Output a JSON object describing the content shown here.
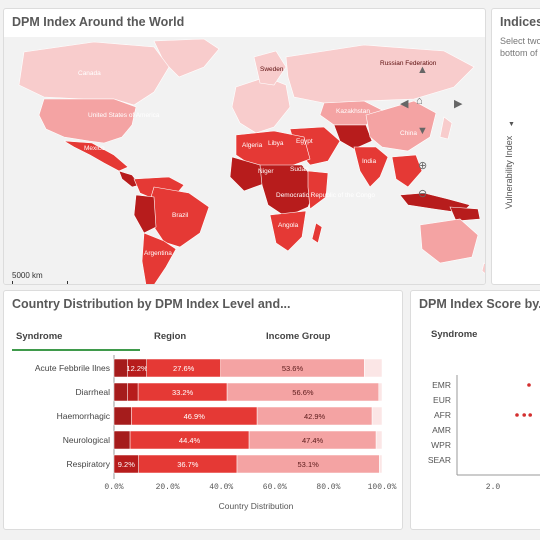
{
  "map_panel": {
    "title": "DPM Index Around the World",
    "scale_label": "5000 km",
    "country_labels": [
      {
        "id": "canada",
        "text": "Canada"
      },
      {
        "id": "usa",
        "text": "United States of America"
      },
      {
        "id": "mexico",
        "text": "Mexico"
      },
      {
        "id": "brazil",
        "text": "Brazil"
      },
      {
        "id": "argentina",
        "text": "Argentina"
      },
      {
        "id": "russia",
        "text": "Russian Federation"
      },
      {
        "id": "sweden",
        "text": "Sweden"
      },
      {
        "id": "kazakhstan",
        "text": "Kazakhstan"
      },
      {
        "id": "china",
        "text": "China"
      },
      {
        "id": "libya",
        "text": "Libya"
      },
      {
        "id": "algeria",
        "text": "Algeria"
      },
      {
        "id": "egypt",
        "text": "Egypt"
      },
      {
        "id": "niger",
        "text": "Niger"
      },
      {
        "id": "sudan",
        "text": "Sudan"
      },
      {
        "id": "india",
        "text": "India"
      },
      {
        "id": "drc",
        "text": "Democratic Republic of the Congo"
      },
      {
        "id": "angola",
        "text": "Angola"
      }
    ],
    "colors": {
      "dark": "#b71c1c",
      "mid": "#e53935",
      "light": "#f4a3a3",
      "pale": "#f8cccc",
      "water": "#f2f2f2"
    }
  },
  "indices_panel": {
    "title": "Indices",
    "subtitle_line1": "Select two",
    "subtitle_line2": "bottom of",
    "axis_label": "Vulnerability Index"
  },
  "dist_panel": {
    "title": "Country Distribution by DPM Index Level and...",
    "tabs": [
      {
        "label": "Syndrome",
        "active": true
      },
      {
        "label": "Region",
        "active": false
      },
      {
        "label": "Income Group",
        "active": false
      }
    ]
  },
  "score_panel": {
    "title": "DPM Index Score by...",
    "tab": "Syndrome",
    "regions": [
      "EMR",
      "EUR",
      "AFR",
      "AMR",
      "WPR",
      "SEAR"
    ],
    "x_tick": "2.0"
  },
  "chart_data": [
    {
      "type": "bar",
      "stacked": true,
      "orientation": "horizontal",
      "title": "Country Distribution by DPM Index Level and...",
      "xlabel": "Country Distribution",
      "ylabel": "",
      "xlim": [
        0,
        100
      ],
      "x_ticks": [
        "0.0%",
        "20.0%",
        "40.0%",
        "60.0%",
        "80.0%",
        "100.0%"
      ],
      "categories": [
        "Acute Febbrile Ilnes",
        "Diarrheal",
        "Haemorrhagic",
        "Neurological",
        "Respiratory"
      ],
      "series": [
        {
          "color": "#a51c1c",
          "values": [
            5.0,
            5.0,
            6.5,
            6.0,
            0.0
          ]
        },
        {
          "color": "#b71c1c",
          "values": [
            7.2,
            4.0,
            0.0,
            0.0,
            9.2
          ]
        },
        {
          "color": "#e53935",
          "values": [
            27.6,
            33.2,
            46.9,
            44.4,
            36.7
          ]
        },
        {
          "color": "#f4a3a3",
          "values": [
            53.6,
            56.6,
            42.9,
            47.4,
            53.1
          ]
        },
        {
          "color": "#fbe6e6",
          "values": [
            6.6,
            1.2,
            3.7,
            2.2,
            1.0
          ]
        }
      ],
      "labels": [
        [
          "",
          "12.2%",
          "27.6%",
          "53.6%",
          ""
        ],
        [
          "",
          "",
          "33.2%",
          "56.6%",
          ""
        ],
        [
          "",
          "",
          "46.9%",
          "42.9%",
          ""
        ],
        [
          "",
          "",
          "44.4%",
          "47.4%",
          ""
        ],
        [
          "",
          "9.2%",
          "36.7%",
          "53.1%",
          ""
        ]
      ]
    },
    {
      "type": "scatter",
      "title": "DPM Index Score by...",
      "categories": [
        "EMR",
        "EUR",
        "AFR",
        "AMR",
        "WPR",
        "SEAR"
      ],
      "x_ticks": [
        "2.0"
      ],
      "points": [
        {
          "region": "EMR",
          "x": 2.3
        },
        {
          "region": "AFR",
          "x": 2.2
        },
        {
          "region": "AFR",
          "x": 2.26
        },
        {
          "region": "AFR",
          "x": 2.31
        }
      ]
    }
  ]
}
